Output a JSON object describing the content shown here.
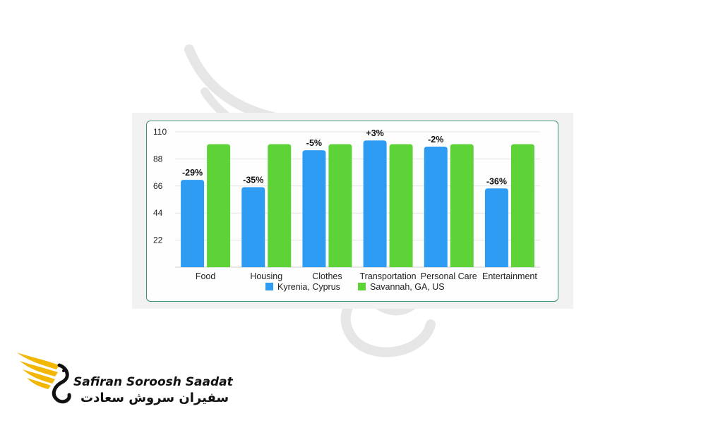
{
  "brand": {
    "name_en": "Safiran Soroosh Saadat",
    "name_fa": "سفیران سروش سعادت",
    "accent_color": "#f2b705"
  },
  "chart_data": {
    "type": "bar",
    "title": "",
    "xlabel": "",
    "ylabel": "",
    "ylim": [
      0,
      110
    ],
    "yticks": [
      22,
      44,
      66,
      88,
      110
    ],
    "grid": true,
    "legend_position": "bottom",
    "categories": [
      "Food",
      "Housing",
      "Clothes",
      "Transportation",
      "Personal Care",
      "Entertainment"
    ],
    "series": [
      {
        "name": "Kyrenia, Cyprus",
        "color": "#2d9cf2",
        "values": [
          71,
          65,
          95,
          103,
          98,
          64
        ],
        "labels": [
          "-29%",
          "-35%",
          "-5%",
          "+3%",
          "-2%",
          "-36%"
        ]
      },
      {
        "name": "Savannah, GA, US",
        "color": "#5dd337",
        "values": [
          100,
          100,
          100,
          100,
          100,
          100
        ]
      }
    ]
  }
}
